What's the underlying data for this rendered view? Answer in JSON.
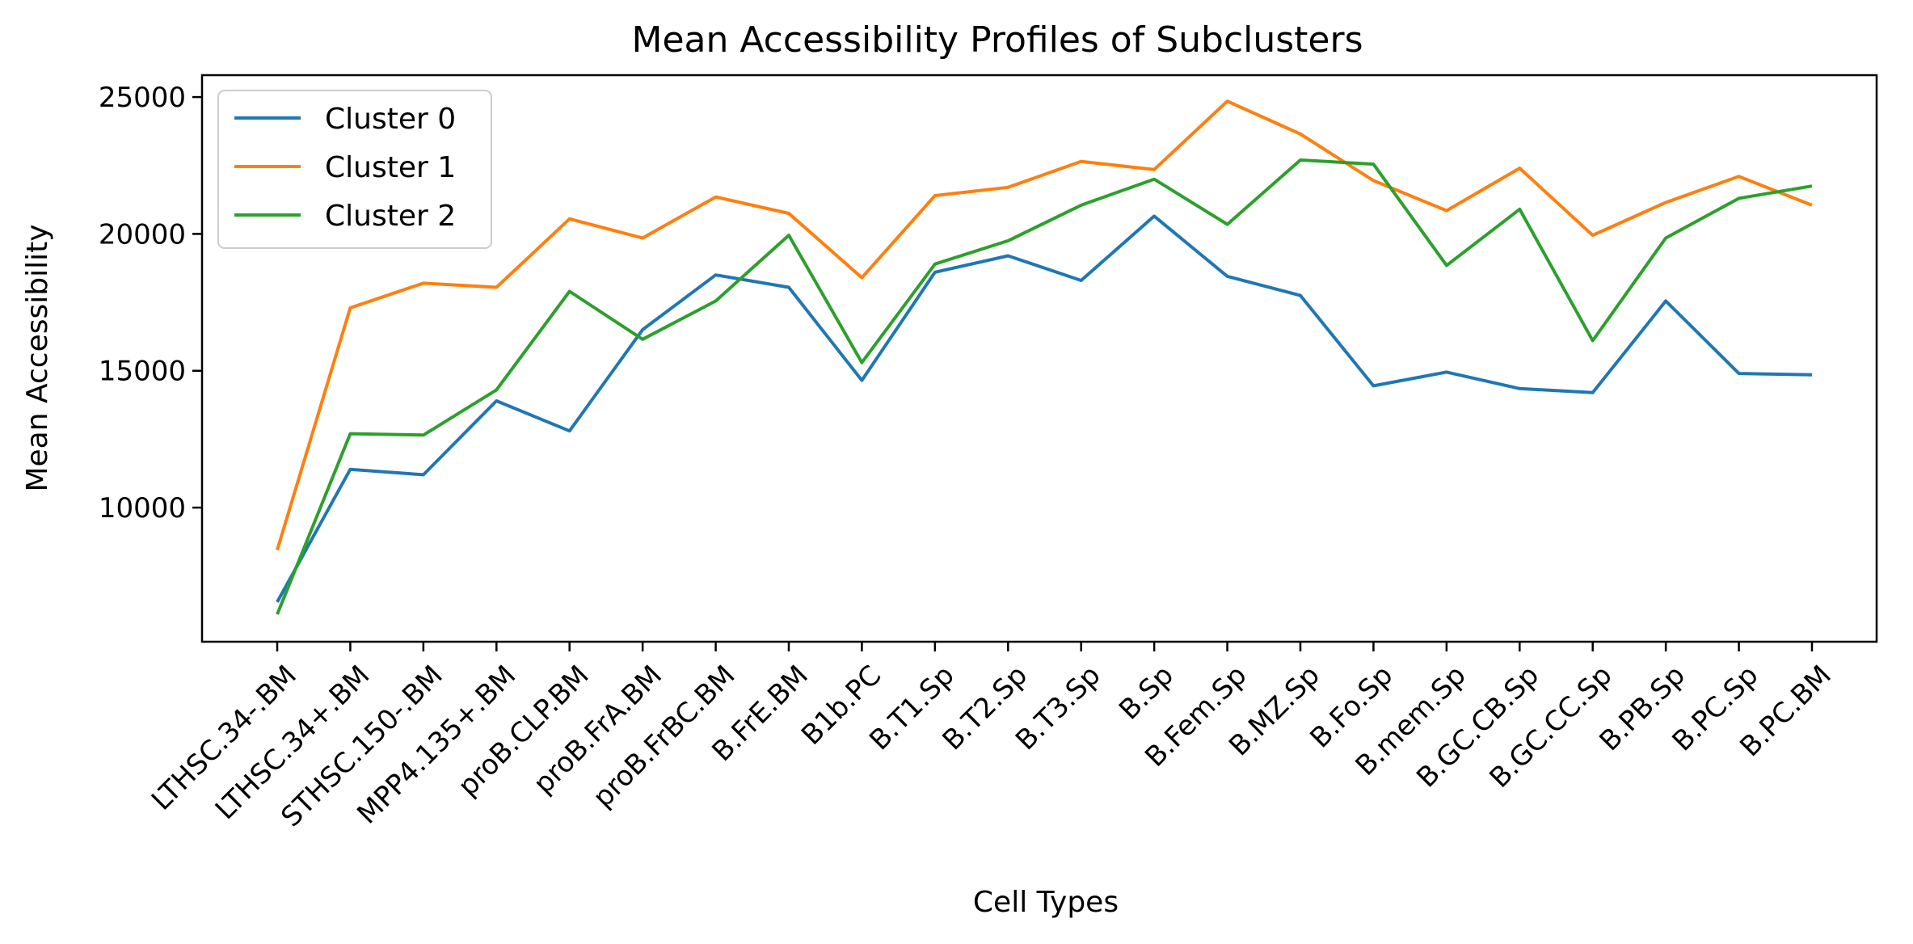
{
  "chart_data": {
    "type": "line",
    "title": "Mean Accessibility Profiles of Subclusters",
    "xlabel": "Cell Types",
    "ylabel": "Mean Accessibility",
    "categories": [
      "LTHSC.34-.BM",
      "LTHSC.34+.BM",
      "STHSC.150-.BM",
      "MPP4.135+.BM",
      "proB.CLP.BM",
      "proB.FrA.BM",
      "proB.FrBC.BM",
      "B.FrE.BM",
      "B1b.PC",
      "B.T1.Sp",
      "B.T2.Sp",
      "B.T3.Sp",
      "B.Sp",
      "B.Fem.Sp",
      "B.MZ.Sp",
      "B.Fo.Sp",
      "B.mem.Sp",
      "B.GC.CB.Sp",
      "B.GC.CC.Sp",
      "B.PB.Sp",
      "B.PC.Sp",
      "B.PC.BM"
    ],
    "ylim": [
      5100,
      25800
    ],
    "yticks": [
      10000,
      15000,
      20000,
      25000
    ],
    "grid": false,
    "legend_position": "top-left",
    "series": [
      {
        "name": "Cluster 0",
        "color": "#1f77b4",
        "values": [
          6550,
          11400,
          11200,
          13900,
          12800,
          16500,
          18500,
          18050,
          14650,
          18600,
          19200,
          18300,
          20650,
          18450,
          17750,
          14450,
          14950,
          14350,
          14200,
          17550,
          14900,
          14850
        ]
      },
      {
        "name": "Cluster 1",
        "color": "#ff7f0e",
        "values": [
          8450,
          17300,
          18200,
          18050,
          20550,
          19850,
          21350,
          20750,
          18400,
          21400,
          21700,
          22650,
          22350,
          24850,
          23650,
          21950,
          20850,
          22400,
          19950,
          21150,
          22100,
          21050
        ]
      },
      {
        "name": "Cluster 2",
        "color": "#2ca02c",
        "values": [
          6100,
          12700,
          12650,
          14300,
          17900,
          16150,
          17550,
          19950,
          15300,
          18900,
          19750,
          21050,
          22000,
          20350,
          22700,
          22550,
          18850,
          20900,
          16100,
          19850,
          21300,
          21750
        ]
      }
    ]
  }
}
